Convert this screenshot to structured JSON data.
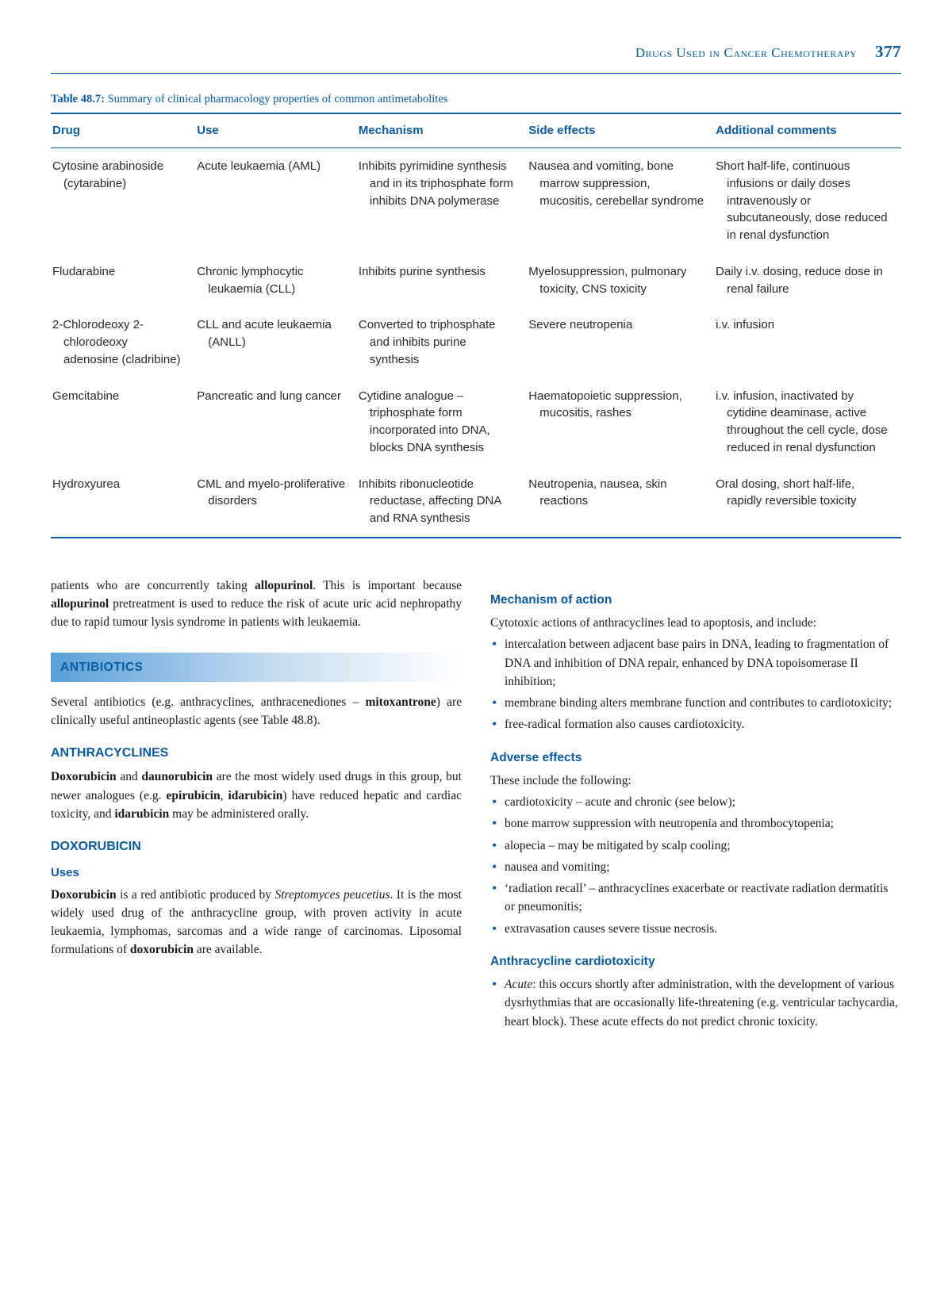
{
  "header": {
    "running_title": "Drugs Used in Cancer Chemotherapy",
    "page_number": "377"
  },
  "table": {
    "caption_label": "Table 48.7:",
    "caption_text": "Summary of clinical pharmacology properties of common antimetabolites",
    "columns": [
      "Drug",
      "Use",
      "Mechanism",
      "Side effects",
      "Additional comments"
    ],
    "rows": [
      {
        "drug": "Cytosine arabinoside (cytarabine)",
        "use": "Acute leukaemia (AML)",
        "mechanism": "Inhibits pyrimidine synthesis and in its triphosphate form inhibits DNA polymerase",
        "side_effects": "Nausea and vomiting, bone marrow suppression, mucositis, cerebellar syndrome",
        "comments": "Short half-life, continuous infusions or daily doses intravenously or subcutaneously, dose reduced in renal dysfunction"
      },
      {
        "drug": "Fludarabine",
        "use": "Chronic lymphocytic leukaemia (CLL)",
        "mechanism": "Inhibits purine synthesis",
        "side_effects": "Myelosuppression, pulmonary toxicity, CNS toxicity",
        "comments": "Daily i.v. dosing, reduce dose in renal failure"
      },
      {
        "drug": "2-Chlorodeoxy 2-chlorodeoxy adenosine (cladribine)",
        "use": "CLL and acute leukaemia (ANLL)",
        "mechanism": "Converted to triphosphate and inhibits purine synthesis",
        "side_effects": "Severe neutropenia",
        "comments": "i.v. infusion"
      },
      {
        "drug": "Gemcitabine",
        "use": "Pancreatic and lung cancer",
        "mechanism": "Cytidine analogue – triphosphate form incorporated into DNA, blocks DNA synthesis",
        "side_effects": "Haematopoietic suppression, mucositis, rashes",
        "comments": "i.v. infusion, inactivated by cytidine deaminase, active throughout the cell cycle, dose reduced in renal dysfunction"
      },
      {
        "drug": "Hydroxyurea",
        "use": "CML and myelo-proliferative disorders",
        "mechanism": "Inhibits ribonucleotide reductase, affecting DNA and RNA synthesis",
        "side_effects": "Neutropenia, nausea, skin reactions",
        "comments": "Oral dosing, short half-life, rapidly reversible toxicity"
      }
    ]
  },
  "left_col": {
    "lead_para_html": "patients who are concurrently taking <b>allopurinol</b>. This is important because <b>allopurinol</b> pretreatment is used to reduce the risk of acute uric acid nephropathy due to rapid tumour lysis syndrome in patients with leukaemia.",
    "section_bar": "ANTIBIOTICS",
    "antibiotics_para_html": "Several antibiotics (e.g. anthracyclines, anthracenediones – <b>mitoxantrone</b>) are clinically useful antineoplastic agents (see Table 48.8).",
    "anthra_heading": "ANTHRACYCLINES",
    "anthra_para_html": "<b>Doxorubicin</b> and <b>daunorubicin</b> are the most widely used drugs in this group, but newer analogues (e.g. <b>epirubicin</b>, <b>idarubicin</b>) have reduced hepatic and cardiac toxicity, and <b>idarubicin</b> may be administered orally.",
    "doxo_heading": "DOXORUBICIN",
    "uses_heading": "Uses",
    "doxo_para_html": "<b>Doxorubicin</b> is a red antibiotic produced by <em class=\"ital\">Streptomyces peucetius</em>. It is the most widely used drug of the anthracycline group, with proven activity in acute leukaemia, lymphomas, sarcomas and a wide range of carcinomas. Liposomal formulations of <b>doxorubicin</b> are available."
  },
  "right_col": {
    "moa_heading": "Mechanism of action",
    "moa_intro": "Cytotoxic actions of anthracyclines lead to apoptosis, and include:",
    "moa_list": [
      "intercalation between adjacent base pairs in DNA, leading to fragmentation of DNA and inhibition of DNA repair, enhanced by DNA topoisomerase II inhibition;",
      "membrane binding alters membrane function and contributes to cardiotoxicity;",
      "free-radical formation also causes cardiotoxicity."
    ],
    "ae_heading": "Adverse effects",
    "ae_intro": "These include the following:",
    "ae_list": [
      "cardiotoxicity – acute and chronic (see below);",
      "bone marrow suppression with neutropenia and thrombocytopenia;",
      "alopecia – may be mitigated by scalp cooling;",
      "nausea and vomiting;",
      "‘radiation recall’ – anthracyclines exacerbate or reactivate radiation dermatitis or pneumonitis;",
      "extravasation causes severe tissue necrosis."
    ],
    "cardio_heading": "Anthracycline cardiotoxicity",
    "cardio_item_html": "<em class=\"ital\">Acute</em>: this occurs shortly after administration, with the development of various dysrhythmias that are occasionally life-threatening (e.g. ventricular tachycardia, heart block). These acute effects do not predict chronic toxicity."
  }
}
